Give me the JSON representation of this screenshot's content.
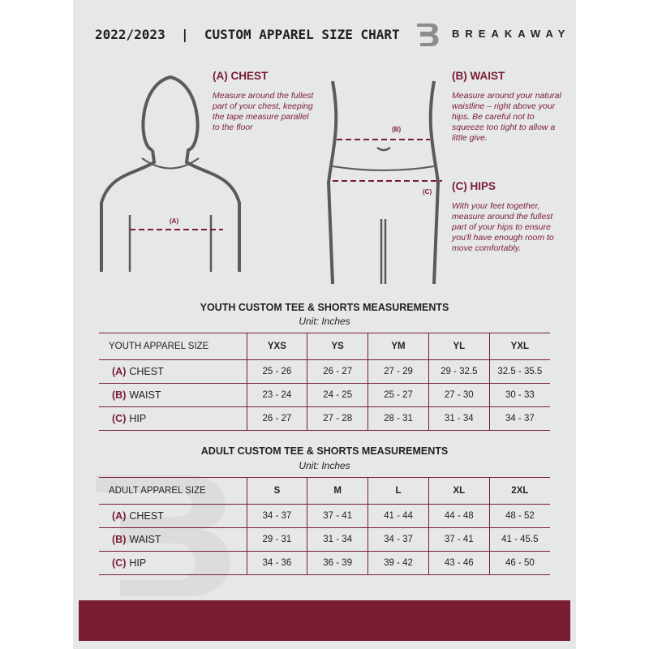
{
  "header": {
    "title": "2022/2023  |  CUSTOM APPAREL SIZE CHART",
    "brand": "BREAKAWAY",
    "logo_letter": "B"
  },
  "guide": {
    "chest": {
      "heading": "(A) CHEST",
      "marker": "(A)",
      "text": "Measure around the fullest part of your chest, keeping the tape measure parallel to the floor"
    },
    "waist": {
      "heading": "(B) WAIST",
      "marker": "(B)",
      "text": "Measure around your natural waistline – right above your hips. Be careful not to squeeze too tight to allow a little give."
    },
    "hips": {
      "heading": "(C) HIPS",
      "marker": "(C)",
      "text": "With your feet together, measure around the fullest part of your hips to ensure you'll have enough room to move comfortably."
    }
  },
  "youth": {
    "title": "YOUTH CUSTOM TEE & SHORTS MEASUREMENTS",
    "unit": "Unit: Inches",
    "header": [
      "YOUTH APPAREL SIZE",
      "YXS",
      "YS",
      "YM",
      "YL",
      "YXL"
    ],
    "rows": [
      {
        "code": "(A)",
        "label": "CHEST",
        "values": [
          "25 - 26",
          "26 - 27",
          "27 - 29",
          "29 - 32.5",
          "32.5 - 35.5"
        ]
      },
      {
        "code": "(B)",
        "label": "WAIST",
        "values": [
          "23 - 24",
          "24 - 25",
          "25 - 27",
          "27 - 30",
          "30 - 33"
        ]
      },
      {
        "code": "(C)",
        "label": "HIP",
        "values": [
          "26 - 27",
          "27 - 28",
          "28 - 31",
          "31 - 34",
          "34 - 37"
        ]
      }
    ]
  },
  "adult": {
    "title": "ADULT CUSTOM TEE & SHORTS MEASUREMENTS",
    "unit": "Unit: Inches",
    "header": [
      "ADULT APPAREL SIZE",
      "S",
      "M",
      "L",
      "XL",
      "2XL"
    ],
    "rows": [
      {
        "code": "(A)",
        "label": "CHEST",
        "values": [
          "34 - 37",
          "37 - 41",
          "41 - 44",
          "44 - 48",
          "48 - 52"
        ]
      },
      {
        "code": "(B)",
        "label": "WAIST",
        "values": [
          "29 - 31",
          "31 - 34",
          "34 - 37",
          "37 - 41",
          "41 - 45.5"
        ]
      },
      {
        "code": "(C)",
        "label": "HIP",
        "values": [
          "34 - 36",
          "36 - 39",
          "39 - 42",
          "43 - 46",
          "46 - 50"
        ]
      }
    ]
  },
  "colors": {
    "accent": "#7a1c33",
    "background": "#e6e7e8"
  }
}
